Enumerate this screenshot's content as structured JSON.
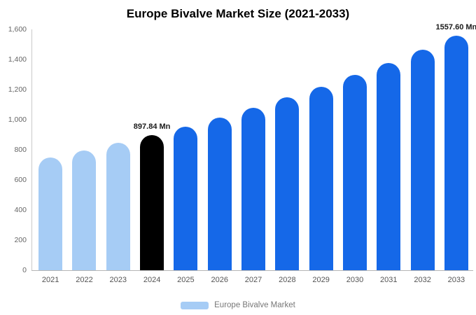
{
  "title": "Europe Bivalve Market Size (2021-2033)",
  "legend": {
    "label": "Europe Bivalve Market",
    "swatch_color": "#a6ccf5"
  },
  "colors": {
    "light_blue": "#a6ccf5",
    "black": "#000000",
    "blue": "#1568e8",
    "axis_text": "#666666",
    "xtick_text": "#555555"
  },
  "chart_data": {
    "type": "bar",
    "title": "Europe Bivalve Market Size (2021-2033)",
    "categories": [
      "2021",
      "2022",
      "2023",
      "2024",
      "2025",
      "2026",
      "2027",
      "2028",
      "2029",
      "2030",
      "2031",
      "2032",
      "2033"
    ],
    "values": [
      747,
      794,
      845,
      897.84,
      954,
      1015,
      1079,
      1147,
      1219,
      1296,
      1378,
      1465,
      1557.6
    ],
    "unit": "Mn",
    "xlabel": "",
    "ylabel": "",
    "ylim": [
      0,
      1600
    ],
    "yticks": [
      0,
      200,
      400,
      600,
      800,
      1000,
      1200,
      1400,
      1600
    ],
    "ytick_labels": [
      "0",
      "200",
      "400",
      "600",
      "800",
      "1,000",
      "1,200",
      "1,400",
      "1,600"
    ],
    "bar_colors": [
      "#a6ccf5",
      "#a6ccf5",
      "#a6ccf5",
      "#000000",
      "#1568e8",
      "#1568e8",
      "#1568e8",
      "#1568e8",
      "#1568e8",
      "#1568e8",
      "#1568e8",
      "#1568e8",
      "#1568e8"
    ],
    "annotations": [
      {
        "index": 3,
        "text": "897.84 Mn"
      },
      {
        "index": 12,
        "text": "1557.60 Mn"
      }
    ],
    "legend_entries": [
      "Europe Bivalve Market"
    ],
    "legend_position": "bottom",
    "grid": false
  }
}
